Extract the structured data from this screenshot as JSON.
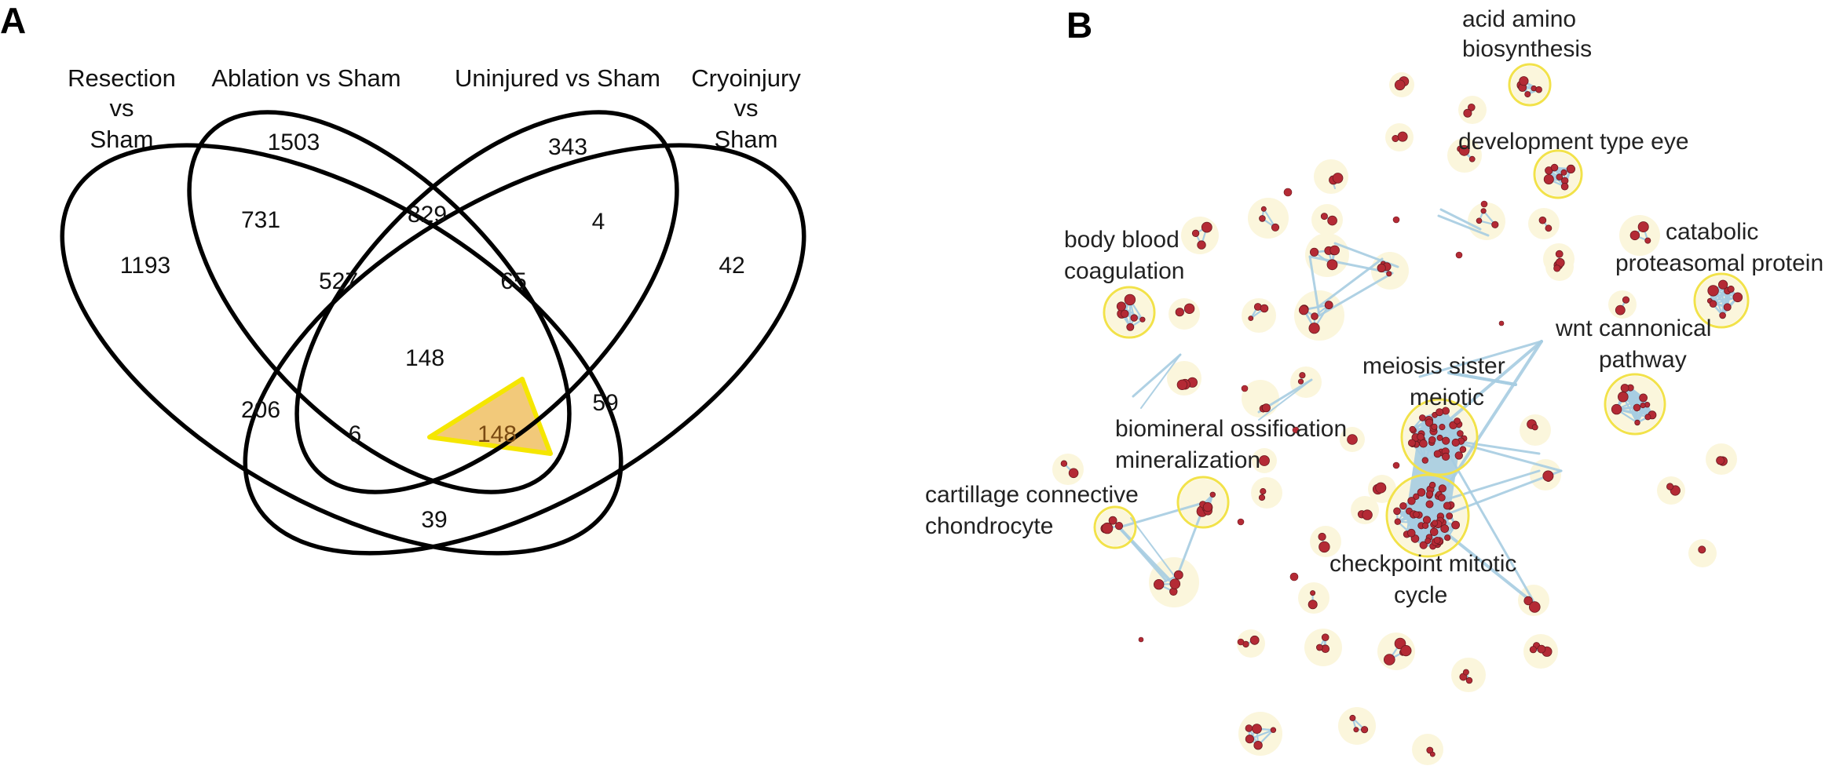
{
  "panel_a": {
    "letter": "A",
    "set_labels": {
      "resection": [
        "Resection",
        "vs",
        "Sham"
      ],
      "ablation": "Ablation vs Sham",
      "uninjured": "Uninjured vs Sham",
      "cryoinjury": [
        "Cryoinjury",
        "vs",
        "Sham"
      ]
    },
    "counts": {
      "resection_only": "1193",
      "ablation_only": "1503",
      "uninjured_only": "343",
      "cryoinjury_only": "42",
      "resection_ablation": "731",
      "ablation_uninjured": "829",
      "uninjured_cryoinjury": "4",
      "resection_ablation_uninjured": "527",
      "ablation_uninjured_cryoinjury": "65",
      "all_four": "148",
      "resection_uninjured": "206",
      "resection_uninjured_cryoinjury": "6",
      "resection_ablation_cryoinjury": "148",
      "ablation_cryoinjury": "59",
      "resection_cryoinjury": "39"
    },
    "highlight_fill": "#f2c97a",
    "highlight_stroke": "#f5e600"
  },
  "panel_b": {
    "letter": "B",
    "cluster_labels": {
      "acid_amino": [
        "acid amino",
        "biosynthesis"
      ],
      "development_eye": [
        "development type eye"
      ],
      "body_blood": [
        "body blood",
        "coagulation"
      ],
      "catabolic": [
        "catabolic",
        "proteasomal protein"
      ],
      "wnt": [
        "wnt cannonical",
        "pathway"
      ],
      "meiosis": [
        "meiosis sister",
        "meiotic"
      ],
      "biomineral": [
        "biomineral ossification",
        "mineralization"
      ],
      "cartillage": [
        "cartillage connective",
        "chondrocyte"
      ],
      "checkpoint": [
        "checkpoint mitotic",
        "cycle"
      ]
    },
    "colors": {
      "node": "#b42a35",
      "node_stroke": "#6b1a20",
      "edge": "#a7cde2",
      "halo": "#fbf6dc",
      "highlight_ring": "#f2e24a"
    }
  }
}
